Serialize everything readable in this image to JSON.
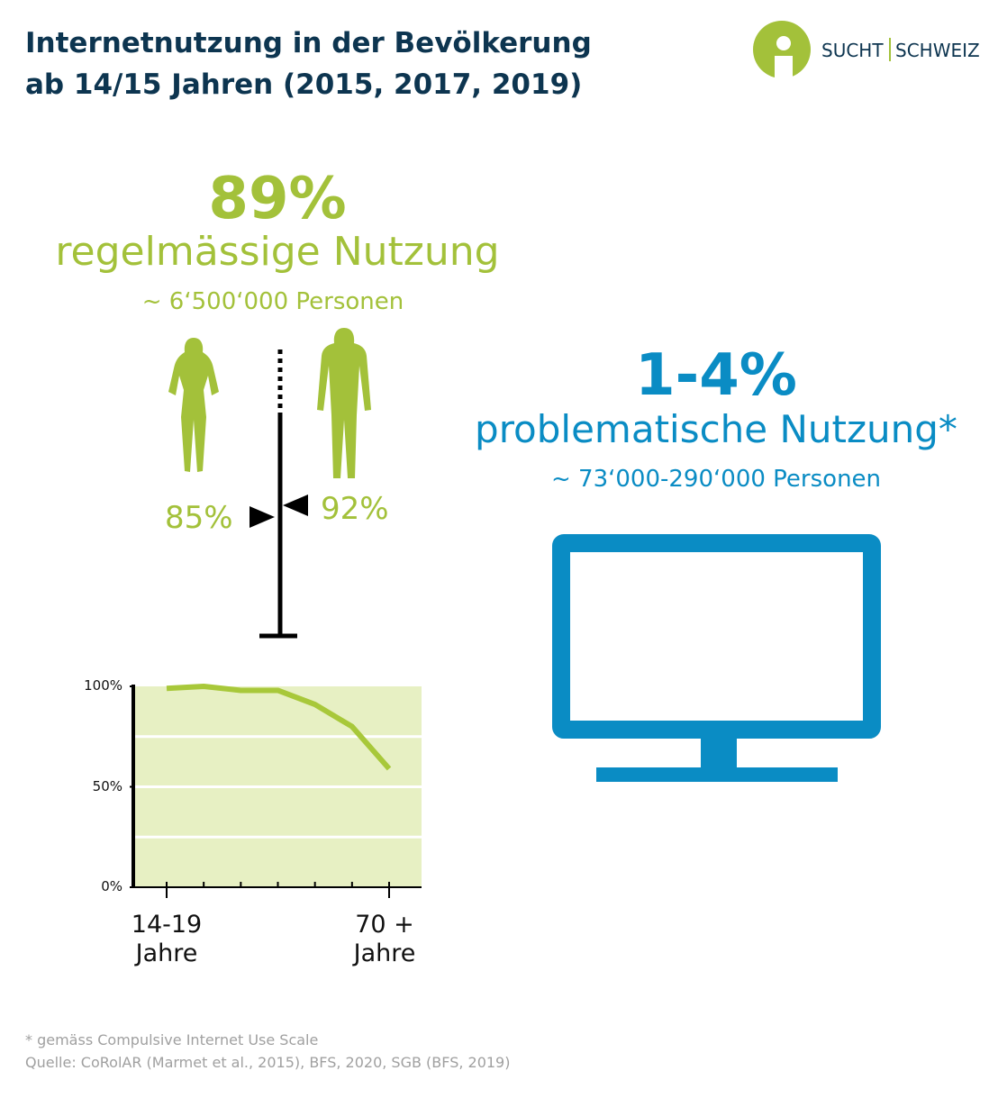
{
  "title": [
    "Internetnutzung in der Bevölkerung",
    "ab 14/15 Jahren (2015, 2017, 2019)"
  ],
  "logo": {
    "left": "SUCHT",
    "right": "SCHWEIZ"
  },
  "regular": {
    "value": "89%",
    "label": "regelmässige Nutzung",
    "persons": "~ 6‘500‘000 Personen",
    "women": "85%",
    "men": "92%"
  },
  "problematic": {
    "value": "1-4%",
    "label": "problematische Nutzung*",
    "persons": "~ 73‘000-290‘000 Personen"
  },
  "chart_data": {
    "type": "line",
    "categories": [
      "14-19 Jahre",
      null,
      null,
      null,
      null,
      null,
      "70 + Jahre"
    ],
    "values": [
      99,
      100,
      98,
      98,
      91,
      80,
      59
    ],
    "color": "#a8c83a",
    "background": "#e7f0c3",
    "ylim": [
      0,
      100
    ],
    "yticks": [
      {
        "value": 0,
        "label": "0%"
      },
      {
        "value": 50,
        "label": "50%"
      },
      {
        "value": 100,
        "label": "100%"
      }
    ],
    "ygrid": [
      25,
      50,
      75
    ]
  },
  "footnotes": [
    "* gemäss Compulsive Internet Use Scale",
    "Quelle: CoRolAR (Marmet et al., 2015), BFS, 2020, SGB (BFS, 2019)"
  ]
}
